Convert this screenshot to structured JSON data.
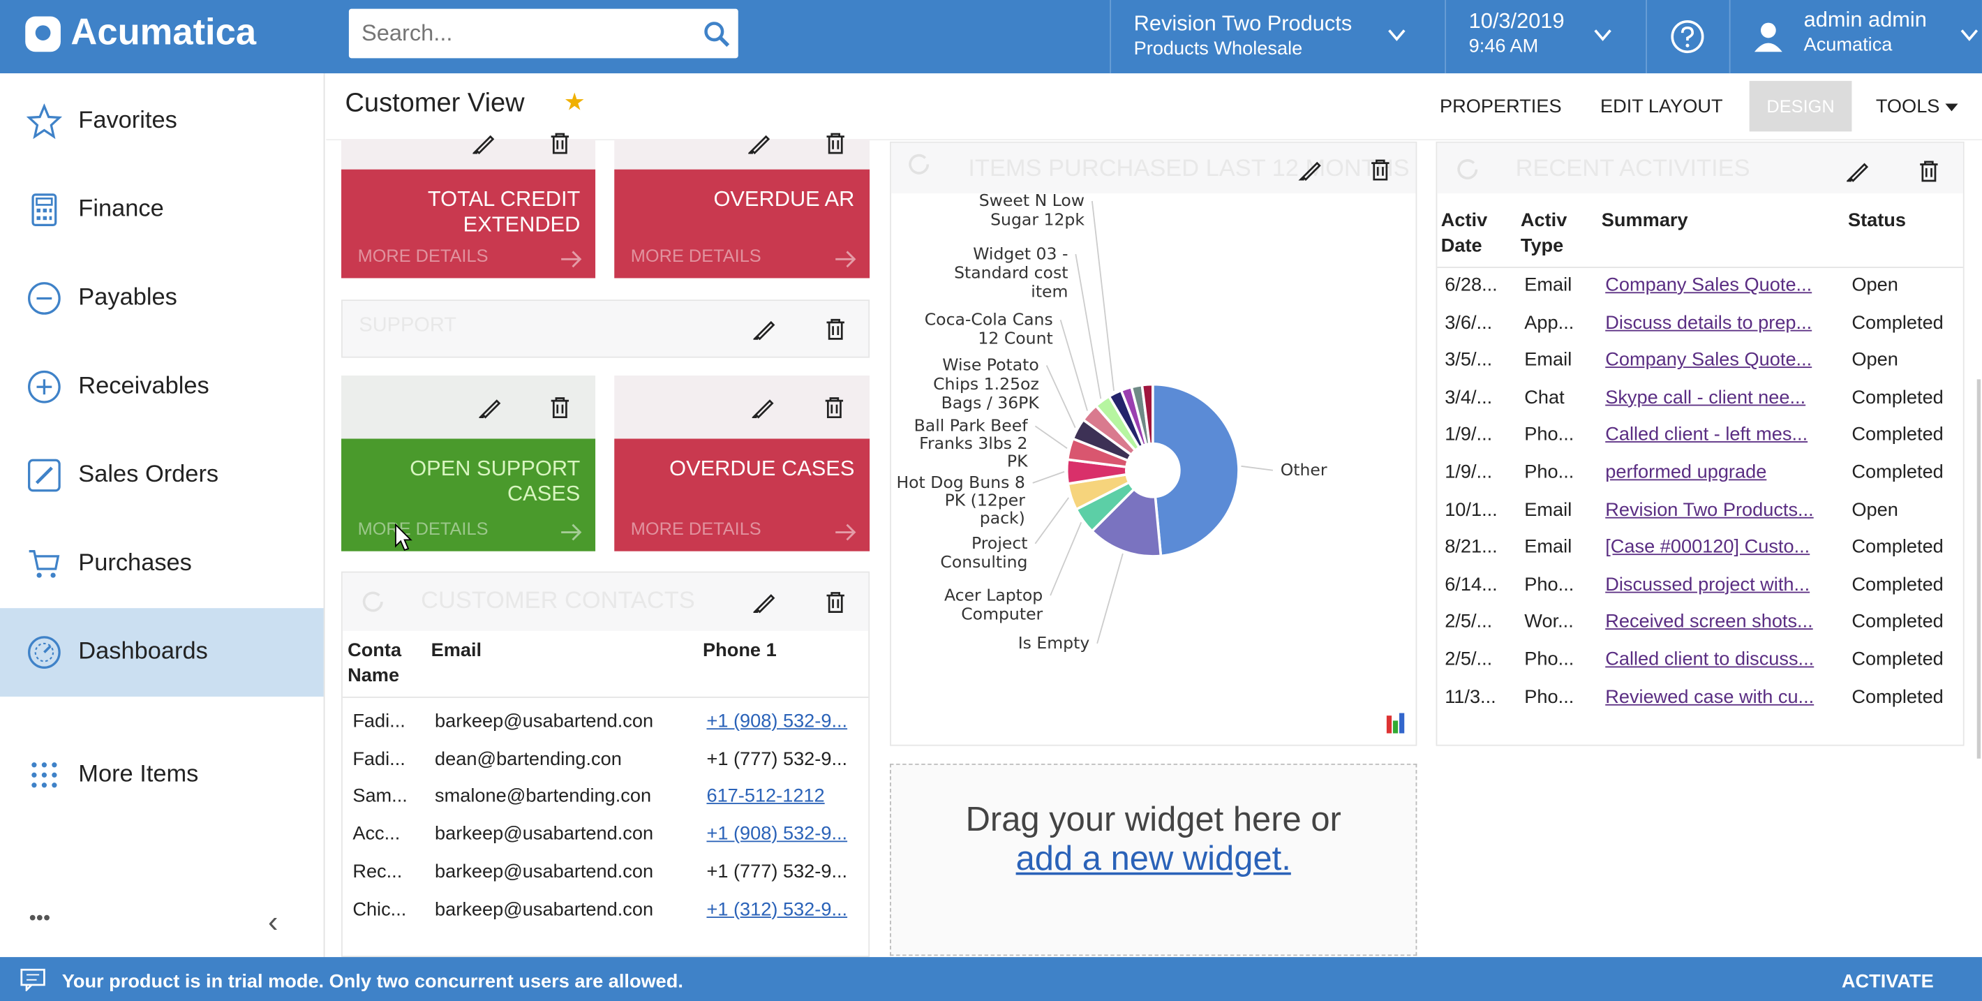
{
  "header": {
    "logo": "Acumatica",
    "search_placeholder": "Search...",
    "company": "Revision Two Products",
    "branch": "Products Wholesale",
    "date": "10/3/2019",
    "time": "9:46 AM",
    "user": "admin admin",
    "tenant": "Acumatica"
  },
  "sidebar": {
    "items": [
      {
        "label": "Favorites",
        "icon": "star-icon"
      },
      {
        "label": "Finance",
        "icon": "calculator-icon"
      },
      {
        "label": "Payables",
        "icon": "minus-circle-icon"
      },
      {
        "label": "Receivables",
        "icon": "plus-circle-icon"
      },
      {
        "label": "Sales Orders",
        "icon": "edit-icon"
      },
      {
        "label": "Purchases",
        "icon": "cart-icon"
      },
      {
        "label": "Dashboards",
        "icon": "gauge-icon",
        "selected": true
      },
      {
        "label": "More Items",
        "icon": "grid-icon"
      }
    ],
    "more": "•••",
    "collapse": "‹"
  },
  "page": {
    "title": "Customer View",
    "toolbar": {
      "properties": "PROPERTIES",
      "edit_layout": "EDIT LAYOUT",
      "design": "DESIGN",
      "tools": "TOOLS"
    }
  },
  "tiles": {
    "total_credit": "TOTAL CREDIT EXTENDED",
    "overdue_ar": "OVERDUE AR",
    "support_title": "SUPPORT",
    "open_support": "OPEN SUPPORT CASES",
    "overdue_cases": "OVERDUE CASES",
    "more_details": "MORE DETAILS",
    "colors": {
      "red": "#c9394f",
      "green": "#4a9a2c"
    }
  },
  "contacts": {
    "title": "CUSTOMER CONTACTS",
    "columns": [
      "Conta Name",
      "Email",
      "Phone 1"
    ],
    "rows": [
      {
        "name": "Fadi...",
        "email": "barkeep@usabartend.con",
        "phone": "+1 (908) 532-9...",
        "link": true
      },
      {
        "name": "Fadi...",
        "email": "dean@bartending.con",
        "phone": "+1 (777) 532-9...",
        "link": false
      },
      {
        "name": "Sam...",
        "email": "smalone@bartending.con",
        "phone": "617-512-1212",
        "link": true
      },
      {
        "name": "Acc...",
        "email": "barkeep@usabartend.con",
        "phone": "+1 (908) 532-9...",
        "link": true
      },
      {
        "name": "Rec...",
        "email": "barkeep@usabartend.con",
        "phone": "+1 (777) 532-9...",
        "link": false
      },
      {
        "name": "Chic...",
        "email": "barkeep@usabartend.con",
        "phone": "+1 (312) 532-9...",
        "link": true
      }
    ]
  },
  "chart_data": {
    "type": "pie",
    "title": "ITEMS PURCHASED LAST 12 MONTHS",
    "donut": true,
    "slices": [
      {
        "label": "Other",
        "value": 48.5,
        "color": "#5b8bd6"
      },
      {
        "label": "Is Empty",
        "value": 14,
        "color": "#7a73c0"
      },
      {
        "label": "Acer Laptop Computer",
        "value": 5,
        "color": "#5ccfa6"
      },
      {
        "label": "Project Consulting",
        "value": 5,
        "color": "#f6d47c"
      },
      {
        "label": "Hot Dog Buns 8 PK (12per pack)",
        "value": 4.5,
        "color": "#d9306a"
      },
      {
        "label": "Ball Park Beef Franks 3lbs 2 PK",
        "value": 4,
        "color": "#d9566f"
      },
      {
        "label": "Wise Potato Chips 1.25oz Bags / 36PK",
        "value": 4,
        "color": "#3d3155"
      },
      {
        "label": "Coca-Cola Cans 12 Count",
        "value": 3.5,
        "color": "#d97a8e"
      },
      {
        "label": "Widget 03 - Standard cost item",
        "value": 3,
        "color": "#b6f5a0"
      },
      {
        "label": "Sweet N Low Sugar 12pk",
        "value": 2.5,
        "color": "#24246b"
      },
      {
        "label": "",
        "value": 2,
        "color": "#9a3fb0"
      },
      {
        "label": "",
        "value": 2,
        "color": "#6f8a86"
      },
      {
        "label": "",
        "value": 2,
        "color": "#a0153e"
      }
    ]
  },
  "dropzone": {
    "text": "Drag your widget here or",
    "link": "add a new widget."
  },
  "activities": {
    "title": "RECENT ACTIVITIES",
    "columns": [
      "Activ Date",
      "Activ Type",
      "Summary",
      "Status"
    ],
    "rows": [
      {
        "date": "6/28...",
        "type": "Email",
        "summary": "Company Sales Quote...",
        "status": "Open"
      },
      {
        "date": "3/6/...",
        "type": "App...",
        "summary": "Discuss details to prep...",
        "status": "Completed"
      },
      {
        "date": "3/5/...",
        "type": "Email",
        "summary": "Company Sales Quote...",
        "status": "Open"
      },
      {
        "date": "3/4/...",
        "type": "Chat",
        "summary": "Skype call - client nee...",
        "status": "Completed"
      },
      {
        "date": "1/9/...",
        "type": "Pho...",
        "summary": "Called client - left mes...",
        "status": "Completed"
      },
      {
        "date": "1/9/...",
        "type": "Pho...",
        "summary": "performed upgrade",
        "status": "Completed"
      },
      {
        "date": "10/1...",
        "type": "Email",
        "summary": "Revision Two Products...",
        "status": "Open"
      },
      {
        "date": "8/21...",
        "type": "Email",
        "summary": "[Case #000120] Custo...",
        "status": "Completed"
      },
      {
        "date": "6/14...",
        "type": "Pho...",
        "summary": "Discussed project with...",
        "status": "Completed"
      },
      {
        "date": "2/5/...",
        "type": "Wor...",
        "summary": "Received screen shots...",
        "status": "Completed"
      },
      {
        "date": "2/5/...",
        "type": "Pho...",
        "summary": "Called client to discuss...",
        "status": "Completed"
      },
      {
        "date": "11/3...",
        "type": "Pho...",
        "summary": "Reviewed case with cu...",
        "status": "Completed"
      }
    ]
  },
  "footer": {
    "message": "Your product is in trial mode. Only two concurrent users are allowed.",
    "activate": "ACTIVATE"
  }
}
